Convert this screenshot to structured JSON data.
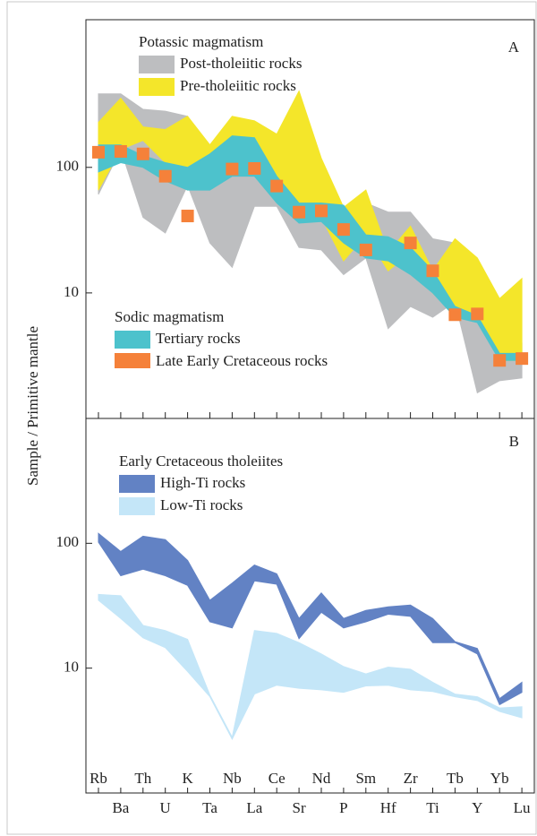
{
  "chart_data": [
    {
      "type": "band",
      "panel": "A",
      "ylabel": "Sample / Primitive mantle",
      "log_y": true,
      "ylim": [
        1,
        1500
      ],
      "yticks": [
        10,
        100
      ],
      "groups": [
        {
          "title": "Potassic magmatism",
          "series": [
            {
              "name": "Post-tholeiitic rocks",
              "color": "#bdbec0",
              "high": [
                385,
                385,
                290,
                280,
                255,
                128,
                178,
                178,
                143,
                78,
                48,
                40,
                52,
                44,
                44,
                27,
                25,
                9,
                4.4,
                4
              ],
              "low": [
                61,
                139,
                40,
                30,
                72,
                25,
                16,
                49,
                49,
                23,
                22,
                14,
                19,
                5.2,
                7.8,
                6.4,
                8.5,
                1.6,
                2,
                2.1
              ]
            },
            {
              "name": "Pre-tholeiitic rocks",
              "color": "#f4e62a",
              "high": [
                228,
                355,
                210,
                200,
                255,
                151,
                255,
                235,
                184,
                405,
                118,
                48,
                66,
                21,
                34,
                15,
                27,
                19,
                9,
                13
              ],
              "low": [
                66,
                139,
                164,
                109,
                66,
                103,
                103,
                128,
                72,
                52,
                40,
                18,
                29,
                15,
                21,
                10,
                6.6,
                6.6,
                2.9,
                2.9
              ]
            }
          ]
        },
        {
          "title": "Sodic magmatism",
          "series": [
            {
              "name": "Tertiary rocks",
              "color": "#4dc2cc",
              "high": [
                151,
                151,
                124,
                109,
                100,
                128,
                178,
                172,
                85,
                52,
                52,
                50,
                29,
                28,
                23,
                15,
                7.8,
                6.6,
                3.3,
                3.3
              ],
              "low": [
                92,
                109,
                100,
                78,
                66,
                66,
                85,
                85,
                52,
                36,
                37,
                25,
                19,
                18,
                14,
                10,
                6.4,
                5.8,
                2.9,
                2.9
              ]
            },
            {
              "name": "Late Early Cretaceous rocks",
              "color": "#f5813a",
              "values": [
                132,
                134,
                128,
                85,
                41,
                null,
                97,
                98,
                71,
                44,
                45,
                32,
                22,
                null,
                25,
                15,
                6.7,
                6.8,
                2.9,
                3.0
              ]
            }
          ]
        }
      ]
    },
    {
      "type": "band",
      "panel": "B",
      "log_y": true,
      "ylim": [
        1,
        1000
      ],
      "yticks": [
        10,
        100
      ],
      "categories": [
        "Rb",
        "Ba",
        "Th",
        "U",
        "K",
        "Ta",
        "Nb",
        "La",
        "Ce",
        "Sr",
        "Nd",
        "P",
        "Sm",
        "Hf",
        "Zr",
        "Ti",
        "Tb",
        "Y",
        "Yb",
        "Lu"
      ],
      "groups": [
        {
          "title": "Early Cretaceous tholeiites",
          "series": [
            {
              "name": "High-Ti rocks",
              "color": "#6282c4",
              "high": [
                120,
                86,
                114,
                107,
                73,
                35,
                48,
                67,
                57,
                25,
                40,
                25,
                29,
                31,
                32,
                25,
                16.3,
                14.4,
                5.7,
                7.7
              ],
              "low": [
                102,
                55,
                62,
                55,
                46,
                23.5,
                21,
                50,
                47,
                17.2,
                28,
                21,
                23.5,
                27,
                26,
                16,
                16,
                13,
                5.1,
                6.4
              ]
            },
            {
              "name": "Low-Ti rocks",
              "color": "#c4e6f8",
              "high": [
                39,
                38,
                22,
                20,
                17,
                6.1,
                2.8,
                20,
                19,
                16,
                13,
                10.3,
                9,
                10.2,
                9.8,
                7.7,
                6.2,
                5.9,
                4.8,
                4.9
              ],
              "low": [
                35,
                25,
                17.5,
                14.6,
                9.4,
                5.9,
                2.7,
                6.2,
                7.3,
                6.9,
                6.7,
                6.4,
                7.2,
                7.3,
                6.7,
                6.5,
                5.9,
                5.5,
                4.5,
                4.0
              ]
            }
          ]
        }
      ]
    }
  ]
}
